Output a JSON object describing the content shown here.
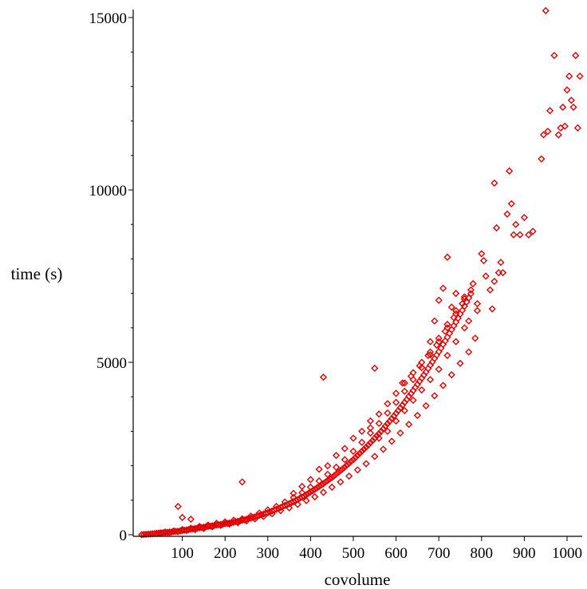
{
  "chart_data": {
    "type": "scatter",
    "title": "",
    "xlabel": "covolume",
    "ylabel": "time (s)",
    "xlim": [
      0,
      1040
    ],
    "ylim": [
      0,
      15200
    ],
    "x_ticks": [
      100,
      200,
      300,
      400,
      500,
      600,
      700,
      800,
      900,
      1000
    ],
    "y_ticks": [
      0,
      5000,
      10000,
      15000
    ],
    "grid": false,
    "marker": "diamond",
    "color": "#e00000",
    "series": [
      {
        "points": [
          [
            5,
            3
          ],
          [
            10,
            8
          ],
          [
            15,
            12
          ],
          [
            20,
            18
          ],
          [
            25,
            22
          ],
          [
            30,
            30
          ],
          [
            35,
            35
          ],
          [
            40,
            40
          ],
          [
            45,
            50
          ],
          [
            50,
            55
          ],
          [
            55,
            60
          ],
          [
            60,
            65
          ],
          [
            65,
            70
          ],
          [
            70,
            75
          ],
          [
            75,
            80
          ],
          [
            80,
            90
          ],
          [
            85,
            95
          ],
          [
            90,
            100
          ],
          [
            95,
            110
          ],
          [
            100,
            120
          ],
          [
            105,
            130
          ],
          [
            110,
            140
          ],
          [
            115,
            150
          ],
          [
            120,
            160
          ],
          [
            125,
            170
          ],
          [
            130,
            180
          ],
          [
            135,
            190
          ],
          [
            140,
            200
          ],
          [
            145,
            210
          ],
          [
            150,
            220
          ],
          [
            155,
            230
          ],
          [
            160,
            240
          ],
          [
            165,
            250
          ],
          [
            170,
            260
          ],
          [
            175,
            270
          ],
          [
            180,
            280
          ],
          [
            185,
            290
          ],
          [
            190,
            300
          ],
          [
            195,
            310
          ],
          [
            200,
            320
          ],
          [
            205,
            330
          ],
          [
            210,
            340
          ],
          [
            215,
            350
          ],
          [
            220,
            360
          ],
          [
            225,
            380
          ],
          [
            230,
            390
          ],
          [
            235,
            400
          ],
          [
            240,
            420
          ],
          [
            245,
            430
          ],
          [
            250,
            450
          ],
          [
            255,
            470
          ],
          [
            260,
            480
          ],
          [
            265,
            500
          ],
          [
            270,
            520
          ],
          [
            275,
            540
          ],
          [
            280,
            560
          ],
          [
            285,
            580
          ],
          [
            290,
            600
          ],
          [
            295,
            620
          ],
          [
            300,
            640
          ],
          [
            305,
            660
          ],
          [
            310,
            690
          ],
          [
            315,
            710
          ],
          [
            320,
            740
          ],
          [
            325,
            760
          ],
          [
            330,
            790
          ],
          [
            335,
            820
          ],
          [
            340,
            850
          ],
          [
            345,
            870
          ],
          [
            350,
            900
          ],
          [
            355,
            930
          ],
          [
            360,
            960
          ],
          [
            365,
            990
          ],
          [
            370,
            1020
          ],
          [
            375,
            1060
          ],
          [
            380,
            1090
          ],
          [
            385,
            1120
          ],
          [
            390,
            1160
          ],
          [
            395,
            1200
          ],
          [
            400,
            1240
          ],
          [
            405,
            1280
          ],
          [
            410,
            1320
          ],
          [
            415,
            1360
          ],
          [
            420,
            1400
          ],
          [
            425,
            1440
          ],
          [
            430,
            1480
          ],
          [
            435,
            1530
          ],
          [
            440,
            1570
          ],
          [
            445,
            1620
          ],
          [
            450,
            1660
          ],
          [
            455,
            1710
          ],
          [
            460,
            1760
          ],
          [
            465,
            1810
          ],
          [
            470,
            1860
          ],
          [
            475,
            1910
          ],
          [
            480,
            1960
          ],
          [
            485,
            2020
          ],
          [
            490,
            2070
          ],
          [
            495,
            2130
          ],
          [
            500,
            2180
          ],
          [
            505,
            2240
          ],
          [
            510,
            2300
          ],
          [
            515,
            2360
          ],
          [
            520,
            2420
          ],
          [
            525,
            2480
          ],
          [
            530,
            2540
          ],
          [
            535,
            2600
          ],
          [
            540,
            2670
          ],
          [
            545,
            2730
          ],
          [
            550,
            2800
          ],
          [
            555,
            2870
          ],
          [
            560,
            2930
          ],
          [
            565,
            3000
          ],
          [
            570,
            3070
          ],
          [
            575,
            3150
          ],
          [
            580,
            3220
          ],
          [
            585,
            3290
          ],
          [
            590,
            3370
          ],
          [
            595,
            3440
          ],
          [
            600,
            3520
          ],
          [
            605,
            3600
          ],
          [
            610,
            3680
          ],
          [
            615,
            3760
          ],
          [
            620,
            3840
          ],
          [
            625,
            3920
          ],
          [
            630,
            4010
          ],
          [
            635,
            4090
          ],
          [
            640,
            4180
          ],
          [
            645,
            4270
          ],
          [
            650,
            4360
          ],
          [
            655,
            4450
          ],
          [
            660,
            4540
          ],
          [
            665,
            4630
          ],
          [
            670,
            4720
          ],
          [
            675,
            4820
          ],
          [
            680,
            4920
          ],
          [
            685,
            5010
          ],
          [
            690,
            5110
          ],
          [
            695,
            5210
          ],
          [
            700,
            5310
          ],
          [
            705,
            5410
          ],
          [
            710,
            5520
          ],
          [
            715,
            5620
          ],
          [
            720,
            5730
          ],
          [
            725,
            5840
          ],
          [
            730,
            5950
          ],
          [
            735,
            6060
          ],
          [
            740,
            6170
          ],
          [
            745,
            6280
          ],
          [
            750,
            6400
          ],
          [
            755,
            6510
          ],
          [
            760,
            6630
          ],
          [
            765,
            6750
          ],
          [
            770,
            6870
          ],
          [
            775,
            6990
          ],
          [
            50,
            40
          ],
          [
            60,
            80
          ],
          [
            70,
            60
          ],
          [
            80,
            110
          ],
          [
            90,
            90
          ],
          [
            100,
            150
          ],
          [
            110,
            120
          ],
          [
            120,
            190
          ],
          [
            130,
            150
          ],
          [
            140,
            240
          ],
          [
            150,
            190
          ],
          [
            160,
            280
          ],
          [
            170,
            230
          ],
          [
            180,
            330
          ],
          [
            190,
            270
          ],
          [
            200,
            370
          ],
          [
            210,
            310
          ],
          [
            220,
            420
          ],
          [
            230,
            350
          ],
          [
            240,
            460
          ],
          [
            250,
            400
          ],
          [
            260,
            540
          ],
          [
            270,
            460
          ],
          [
            280,
            630
          ],
          [
            290,
            530
          ],
          [
            300,
            720
          ],
          [
            310,
            610
          ],
          [
            320,
            820
          ],
          [
            330,
            700
          ],
          [
            340,
            950
          ],
          [
            350,
            780
          ],
          [
            360,
            1080
          ],
          [
            370,
            880
          ],
          [
            380,
            1220
          ],
          [
            390,
            990
          ],
          [
            400,
            1380
          ],
          [
            410,
            1100
          ],
          [
            420,
            1560
          ],
          [
            430,
            1230
          ],
          [
            440,
            1750
          ],
          [
            450,
            1380
          ],
          [
            460,
            1960
          ],
          [
            470,
            1530
          ],
          [
            480,
            2180
          ],
          [
            490,
            1700
          ],
          [
            500,
            2420
          ],
          [
            510,
            1880
          ],
          [
            520,
            2680
          ],
          [
            530,
            2060
          ],
          [
            540,
            2950
          ],
          [
            550,
            2270
          ],
          [
            560,
            3230
          ],
          [
            570,
            2480
          ],
          [
            580,
            3530
          ],
          [
            590,
            2710
          ],
          [
            600,
            3840
          ],
          [
            610,
            2950
          ],
          [
            620,
            4160
          ],
          [
            630,
            3200
          ],
          [
            640,
            4500
          ],
          [
            650,
            3460
          ],
          [
            660,
            4850
          ],
          [
            670,
            3740
          ],
          [
            680,
            5220
          ],
          [
            690,
            4030
          ],
          [
            700,
            5600
          ],
          [
            710,
            4330
          ],
          [
            720,
            6000
          ],
          [
            730,
            4640
          ],
          [
            740,
            6410
          ],
          [
            750,
            4970
          ],
          [
            760,
            6840
          ],
          [
            770,
            5300
          ],
          [
            780,
            7280
          ],
          [
            785,
            5700
          ],
          [
            790,
            6500
          ],
          [
            360,
            1200
          ],
          [
            380,
            1400
          ],
          [
            400,
            1600
          ],
          [
            420,
            1900
          ],
          [
            440,
            2000
          ],
          [
            460,
            2300
          ],
          [
            480,
            2500
          ],
          [
            500,
            2800
          ],
          [
            520,
            3000
          ],
          [
            540,
            3300
          ],
          [
            560,
            3500
          ],
          [
            580,
            3800
          ],
          [
            600,
            4100
          ],
          [
            620,
            4400
          ],
          [
            640,
            4700
          ],
          [
            660,
            5000
          ],
          [
            680,
            5300
          ],
          [
            700,
            5700
          ],
          [
            720,
            6100
          ],
          [
            740,
            6500
          ],
          [
            760,
            6900
          ],
          [
            540,
            3100
          ],
          [
            560,
            2800
          ],
          [
            580,
            3000
          ],
          [
            600,
            3300
          ],
          [
            620,
            3600
          ],
          [
            640,
            3900
          ],
          [
            660,
            4200
          ],
          [
            680,
            4500
          ],
          [
            700,
            4800
          ],
          [
            720,
            5200
          ],
          [
            740,
            5600
          ],
          [
            760,
            6000
          ],
          [
            615,
            4400
          ],
          [
            635,
            4600
          ],
          [
            655,
            4900
          ],
          [
            675,
            5200
          ],
          [
            695,
            5500
          ],
          [
            715,
            5900
          ],
          [
            735,
            6300
          ],
          [
            755,
            6700
          ],
          [
            775,
            7100
          ],
          [
            90,
            820
          ],
          [
            100,
            500
          ],
          [
            120,
            450
          ],
          [
            150,
            180
          ],
          [
            240,
            1530
          ],
          [
            430,
            4570
          ],
          [
            550,
            4830
          ],
          [
            720,
            8050
          ],
          [
            710,
            7150
          ],
          [
            700,
            6800
          ],
          [
            680,
            5600
          ],
          [
            690,
            6200
          ],
          [
            730,
            6600
          ],
          [
            740,
            7000
          ],
          [
            770,
            6200
          ],
          [
            790,
            6700
          ],
          [
            800,
            8150
          ],
          [
            805,
            7950
          ],
          [
            810,
            7500
          ],
          [
            820,
            7100
          ],
          [
            825,
            6550
          ],
          [
            830,
            7350
          ],
          [
            840,
            7600
          ],
          [
            845,
            7900
          ],
          [
            850,
            7600
          ],
          [
            860,
            9300
          ],
          [
            865,
            10550
          ],
          [
            870,
            9600
          ],
          [
            875,
            8700
          ],
          [
            880,
            9000
          ],
          [
            890,
            8700
          ],
          [
            900,
            9200
          ],
          [
            910,
            8700
          ],
          [
            920,
            8800
          ],
          [
            830,
            10200
          ],
          [
            835,
            8900
          ],
          [
            940,
            10900
          ],
          [
            945,
            11600
          ],
          [
            950,
            15200
          ],
          [
            955,
            11700
          ],
          [
            960,
            12300
          ],
          [
            970,
            13900
          ],
          [
            980,
            11600
          ],
          [
            985,
            11800
          ],
          [
            990,
            12400
          ],
          [
            995,
            11850
          ],
          [
            1000,
            12900
          ],
          [
            1005,
            13300
          ],
          [
            1010,
            12600
          ],
          [
            1015,
            12400
          ],
          [
            1020,
            13900
          ],
          [
            1025,
            11800
          ],
          [
            1030,
            13300
          ]
        ]
      }
    ]
  }
}
